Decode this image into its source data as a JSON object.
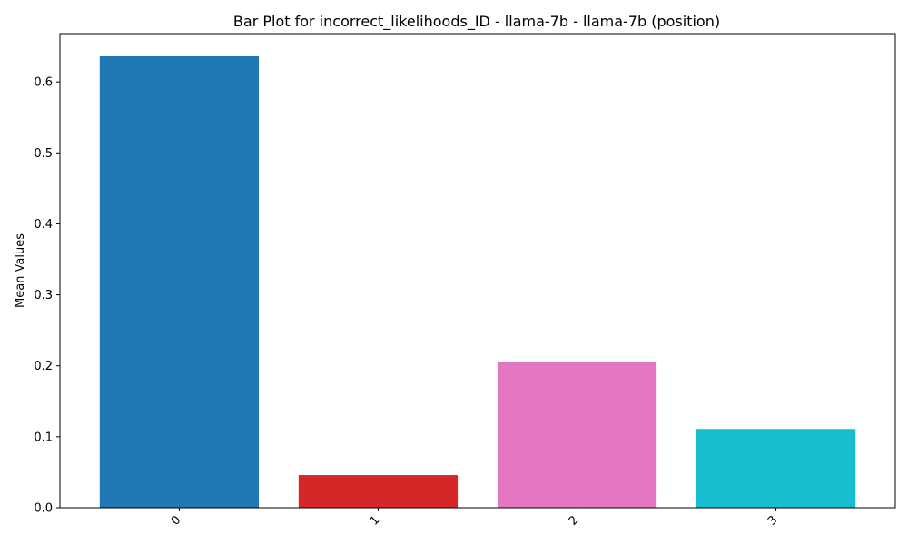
{
  "chart_data": {
    "type": "bar",
    "title": "Bar Plot for incorrect_likelihoods_ID - llama-7b - llama-7b (position)",
    "xlabel": "",
    "ylabel": "Mean Values",
    "categories": [
      "0",
      "1",
      "2",
      "3"
    ],
    "values": [
      0.636,
      0.046,
      0.206,
      0.111
    ],
    "colors": [
      "#1f77b4",
      "#d62728",
      "#e377c2",
      "#17becf"
    ],
    "ylim": [
      0,
      0.668
    ],
    "yticks": [
      0.0,
      0.1,
      0.2,
      0.3,
      0.4,
      0.5,
      0.6
    ],
    "ytick_labels": [
      "0.0",
      "0.1",
      "0.2",
      "0.3",
      "0.4",
      "0.5",
      "0.6"
    ],
    "grid": false,
    "legend": "none"
  }
}
